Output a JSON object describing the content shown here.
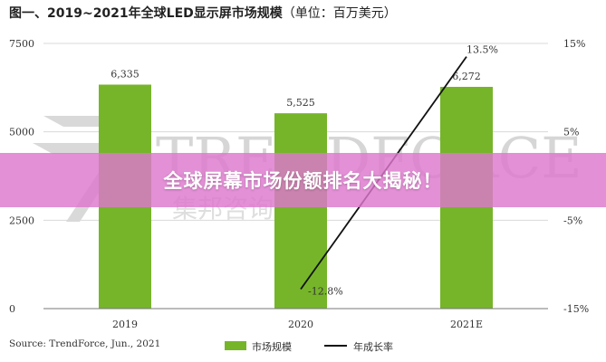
{
  "title": "图一、2019~2021年全球LED显示屏市场规模",
  "title_unit": "（单位：百万美元）",
  "source": "Source: TrendForce, Jun., 2021",
  "watermark": {
    "text": "TRENDFORCE",
    "subtext": "集邦咨询"
  },
  "banner": {
    "text": "全球屏幕市场份额排名大揭秘！"
  },
  "colors": {
    "bar": "#76b52a",
    "line": "#111111",
    "grid": "#d9d9d9",
    "banner": "#dd78cd"
  },
  "chart_data": {
    "type": "bar",
    "categories": [
      "2019",
      "2020",
      "2021E"
    ],
    "series": [
      {
        "name": "市场规模",
        "type": "bar",
        "axis": "left",
        "values": [
          6335,
          5525,
          6272
        ],
        "labels": [
          "6,335",
          "5,525",
          "6,272"
        ]
      },
      {
        "name": "年成长率",
        "type": "line",
        "axis": "right",
        "points": [
          {
            "category": "2020",
            "value": -12.8,
            "label": "-12.8%"
          },
          {
            "category": "2021E",
            "value": 13.5,
            "label": "13.5%"
          }
        ]
      }
    ],
    "y_left": {
      "ylim": [
        0,
        7500
      ],
      "ticks": [
        0,
        2500,
        5000,
        7500
      ],
      "tick_labels": [
        "0",
        "2500",
        "5000",
        "7500"
      ]
    },
    "y_right": {
      "ylim": [
        -15,
        15
      ],
      "ticks": [
        -15,
        -5,
        5,
        15
      ],
      "tick_labels": [
        "-15%",
        "-5%",
        "5%",
        "15%"
      ]
    },
    "grid": true,
    "legend_position": "bottom-center"
  }
}
